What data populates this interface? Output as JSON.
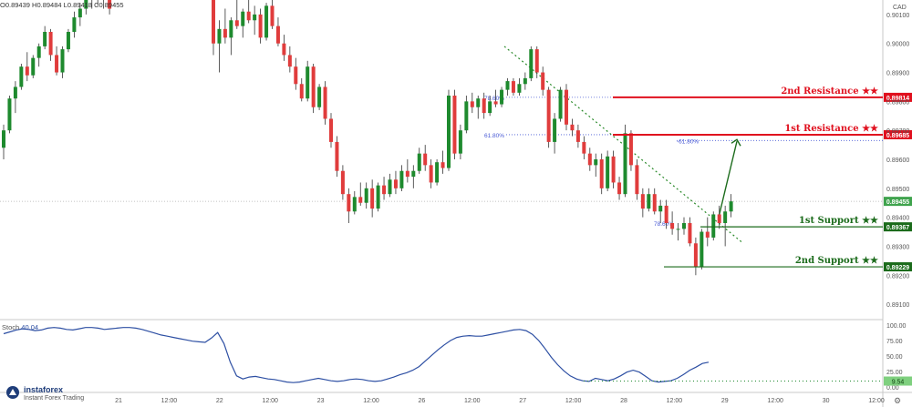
{
  "header": {
    "o": "O0.89439",
    "h": "H0.89484",
    "l": "L0.89418",
    "c": "C0.89455",
    "currency": "CAD"
  },
  "colors": {
    "up": "#1e8a2e",
    "down": "#e03c3c",
    "resistance": "#e0101e",
    "support": "#1b6b1b",
    "fib": "#4a5bd6",
    "stoch": "#2d4fa3",
    "trend": "#2a8a2a",
    "price_tag": "#3fa34d"
  },
  "chart_data": [
    {
      "type": "candlestick",
      "price_axis": {
        "ylim": [
          0.8905,
          0.9015
        ],
        "tick_labels": [
          "0.90100",
          "0.90000",
          "0.89900",
          "0.89800",
          "0.89700",
          "0.89600",
          "0.89500",
          "0.89400",
          "0.89300",
          "0.89200",
          "0.89100"
        ]
      },
      "time_axis": {
        "tick_labels": [
          "21",
          "12:00",
          "22",
          "12:00",
          "23",
          "12:00",
          "26",
          "12:00",
          "27",
          "12:00",
          "28",
          "12:00",
          "29",
          "12:00",
          "30",
          "12:00"
        ]
      },
      "current_price": "0.89455",
      "levels": [
        {
          "name": "2nd Resistance",
          "stars": "★★",
          "value": "0.89814",
          "kind": "resistance"
        },
        {
          "name": "1st Resistance",
          "stars": "★★",
          "value": "0.89685",
          "kind": "resistance"
        },
        {
          "name": "1st Support",
          "stars": "★★",
          "value": "0.89367",
          "kind": "support"
        },
        {
          "name": "2nd Support",
          "stars": "★★",
          "value": "0.89229",
          "kind": "support"
        }
      ],
      "fib_labels": [
        "78.60%",
        "61.80%",
        "-61.80%",
        "78.60%"
      ],
      "candles": [
        [
          0.8964,
          0.8972,
          0.896,
          0.897
        ],
        [
          0.897,
          0.8982,
          0.8969,
          0.8981
        ],
        [
          0.8981,
          0.8987,
          0.8976,
          0.8985
        ],
        [
          0.8985,
          0.8993,
          0.8984,
          0.8992
        ],
        [
          0.8992,
          0.8997,
          0.8987,
          0.8989
        ],
        [
          0.8989,
          0.8996,
          0.8988,
          0.8995
        ],
        [
          0.8995,
          0.9,
          0.8992,
          0.8999
        ],
        [
          0.8999,
          0.9006,
          0.8998,
          0.9004
        ],
        [
          0.9004,
          0.9005,
          0.8994,
          0.8996
        ],
        [
          0.8996,
          0.8999,
          0.8989,
          0.899
        ],
        [
          0.899,
          0.8999,
          0.8988,
          0.8998
        ],
        [
          0.8998,
          0.9005,
          0.8997,
          0.9004
        ],
        [
          0.9004,
          0.9011,
          0.9002,
          0.9009
        ],
        [
          0.9009,
          0.9014,
          0.9006,
          0.9012
        ],
        [
          0.9012,
          0.9017,
          0.901,
          0.9015
        ],
        [
          0.9015,
          0.902,
          0.9012,
          0.9017
        ],
        [
          0.9017,
          0.902,
          0.9013,
          0.9016
        ],
        [
          0.9016,
          0.9019,
          0.9012,
          0.9018
        ],
        [
          0.9018,
          0.902,
          0.901,
          0.9012
        ],
        [
          0.905,
          0.9052,
          0.8996,
          0.9
        ],
        [
          0.9,
          0.9008,
          0.899,
          0.9005
        ],
        [
          0.9005,
          0.9012,
          0.9,
          0.9002
        ],
        [
          0.9002,
          0.9009,
          0.8996,
          0.9008
        ],
        [
          0.9008,
          0.9015,
          0.9005,
          0.9006
        ],
        [
          0.9006,
          0.9012,
          0.9002,
          0.9011
        ],
        [
          0.9011,
          0.9017,
          0.9007,
          0.9008
        ],
        [
          0.9008,
          0.9013,
          0.9003,
          0.901
        ],
        [
          0.901,
          0.9012,
          0.9,
          0.9002
        ],
        [
          0.9002,
          0.9014,
          0.9001,
          0.9013
        ],
        [
          0.9013,
          0.9015,
          0.9005,
          0.9006
        ],
        [
          0.9006,
          0.9009,
          0.8999,
          0.9
        ],
        [
          0.9,
          0.9003,
          0.8994,
          0.8996
        ],
        [
          0.8996,
          0.8999,
          0.899,
          0.8992
        ],
        [
          0.8992,
          0.8995,
          0.8984,
          0.8986
        ],
        [
          0.8986,
          0.8988,
          0.898,
          0.8981
        ],
        [
          0.8981,
          0.8994,
          0.898,
          0.8992
        ],
        [
          0.8992,
          0.8993,
          0.8976,
          0.8978
        ],
        [
          0.8978,
          0.8986,
          0.8977,
          0.8985
        ],
        [
          0.8985,
          0.8987,
          0.8972,
          0.8974
        ],
        [
          0.8974,
          0.8976,
          0.8964,
          0.8966
        ],
        [
          0.8966,
          0.8968,
          0.8954,
          0.8956
        ],
        [
          0.8956,
          0.8958,
          0.8946,
          0.8948
        ],
        [
          0.8948,
          0.895,
          0.8938,
          0.8942
        ],
        [
          0.8942,
          0.8949,
          0.8941,
          0.8947
        ],
        [
          0.8947,
          0.8952,
          0.8944,
          0.8945
        ],
        [
          0.8945,
          0.8952,
          0.8943,
          0.895
        ],
        [
          0.895,
          0.8953,
          0.894,
          0.8943
        ],
        [
          0.8943,
          0.8952,
          0.8942,
          0.8951
        ],
        [
          0.8951,
          0.8954,
          0.8946,
          0.8948
        ],
        [
          0.8948,
          0.8955,
          0.8947,
          0.8953
        ],
        [
          0.8953,
          0.8956,
          0.8948,
          0.895
        ],
        [
          0.895,
          0.8958,
          0.8949,
          0.8956
        ],
        [
          0.8956,
          0.896,
          0.8952,
          0.8954
        ],
        [
          0.8954,
          0.8958,
          0.895,
          0.8956
        ],
        [
          0.8956,
          0.8964,
          0.8955,
          0.8962
        ],
        [
          0.8962,
          0.8965,
          0.8956,
          0.8958
        ],
        [
          0.8958,
          0.896,
          0.895,
          0.8952
        ],
        [
          0.8952,
          0.896,
          0.8951,
          0.8959
        ],
        [
          0.8959,
          0.8963,
          0.8955,
          0.8957
        ],
        [
          0.8957,
          0.8984,
          0.8956,
          0.8982
        ],
        [
          0.8982,
          0.8984,
          0.896,
          0.8962
        ],
        [
          0.8962,
          0.8972,
          0.896,
          0.897
        ],
        [
          0.897,
          0.8982,
          0.8969,
          0.898
        ],
        [
          0.898,
          0.8983,
          0.8976,
          0.8978
        ],
        [
          0.8978,
          0.8982,
          0.8974,
          0.8981
        ],
        [
          0.8981,
          0.8983,
          0.8974,
          0.8976
        ],
        [
          0.8976,
          0.8982,
          0.8975,
          0.898
        ],
        [
          0.898,
          0.8984,
          0.8978,
          0.8979
        ],
        [
          0.8979,
          0.8985,
          0.8978,
          0.8984
        ],
        [
          0.8984,
          0.8988,
          0.8982,
          0.8987
        ],
        [
          0.8987,
          0.8988,
          0.8982,
          0.8983
        ],
        [
          0.8983,
          0.8988,
          0.8982,
          0.8986
        ],
        [
          0.8986,
          0.899,
          0.8984,
          0.8988
        ],
        [
          0.8988,
          0.8999,
          0.8987,
          0.8998
        ],
        [
          0.8998,
          0.8999,
          0.8988,
          0.899
        ],
        [
          0.899,
          0.8992,
          0.8982,
          0.8984
        ],
        [
          0.8984,
          0.8985,
          0.8964,
          0.8966
        ],
        [
          0.8966,
          0.8976,
          0.8962,
          0.8974
        ],
        [
          0.8974,
          0.8985,
          0.8973,
          0.8984
        ],
        [
          0.8984,
          0.8986,
          0.897,
          0.8972
        ],
        [
          0.8972,
          0.8974,
          0.8968,
          0.897
        ],
        [
          0.897,
          0.8972,
          0.8964,
          0.8966
        ],
        [
          0.8966,
          0.8968,
          0.896,
          0.8962
        ],
        [
          0.8962,
          0.8964,
          0.8956,
          0.8958
        ],
        [
          0.8958,
          0.8962,
          0.8954,
          0.896
        ],
        [
          0.896,
          0.8962,
          0.8948,
          0.895
        ],
        [
          0.895,
          0.8963,
          0.8949,
          0.8961
        ],
        [
          0.8961,
          0.8963,
          0.895,
          0.8952
        ],
        [
          0.8952,
          0.8954,
          0.8946,
          0.8948
        ],
        [
          0.8948,
          0.8972,
          0.8947,
          0.8969
        ],
        [
          0.8969,
          0.897,
          0.8956,
          0.8958
        ],
        [
          0.8958,
          0.896,
          0.8946,
          0.8948
        ],
        [
          0.8948,
          0.895,
          0.894,
          0.8943
        ],
        [
          0.8943,
          0.895,
          0.8942,
          0.8948
        ],
        [
          0.8948,
          0.895,
          0.8941,
          0.8942
        ],
        [
          0.8942,
          0.8946,
          0.8938,
          0.8944
        ],
        [
          0.8944,
          0.8946,
          0.8936,
          0.8938
        ],
        [
          0.8938,
          0.8942,
          0.8934,
          0.8936
        ],
        [
          0.8936,
          0.8938,
          0.8932,
          0.8936
        ],
        [
          0.8936,
          0.894,
          0.8934,
          0.8938
        ],
        [
          0.8938,
          0.894,
          0.893,
          0.8931
        ],
        [
          0.8931,
          0.8933,
          0.892,
          0.8923
        ],
        [
          0.8923,
          0.8936,
          0.8922,
          0.8935
        ],
        [
          0.8935,
          0.894,
          0.893,
          0.8933
        ],
        [
          0.8933,
          0.8942,
          0.8932,
          0.8941
        ],
        [
          0.8941,
          0.8944,
          0.8936,
          0.8938
        ],
        [
          0.8938,
          0.8944,
          0.893,
          0.8942
        ],
        [
          0.8942,
          0.8948,
          0.894,
          0.89455
        ]
      ]
    },
    {
      "type": "line",
      "name": "Stoch",
      "value_label": "40.04",
      "ylim": [
        0,
        100
      ],
      "tick_labels": [
        "100.00",
        "75.00",
        "50.00",
        "25.00",
        "0.00"
      ],
      "marker_label": "9.54",
      "values": [
        86,
        89,
        92,
        94,
        93,
        91,
        92,
        95,
        96,
        95,
        93,
        92,
        94,
        96,
        96,
        95,
        93,
        94,
        95,
        96,
        96,
        95,
        93,
        90,
        87,
        84,
        82,
        80,
        78,
        76,
        74,
        73,
        72,
        79,
        88,
        70,
        40,
        18,
        13,
        16,
        17,
        15,
        13,
        12,
        10,
        8,
        7,
        8,
        10,
        12,
        14,
        12,
        10,
        9,
        10,
        12,
        13,
        12,
        10,
        9,
        10,
        13,
        16,
        20,
        23,
        27,
        33,
        42,
        51,
        60,
        68,
        75,
        80,
        82,
        83,
        82,
        82,
        84,
        86,
        88,
        90,
        92,
        93,
        91,
        85,
        75,
        62,
        48,
        36,
        26,
        18,
        13,
        10,
        9,
        14,
        12,
        10,
        13,
        18,
        24,
        27,
        24,
        17,
        10,
        8,
        9,
        10,
        14,
        20,
        27,
        32,
        38,
        40
      ]
    }
  ]
}
